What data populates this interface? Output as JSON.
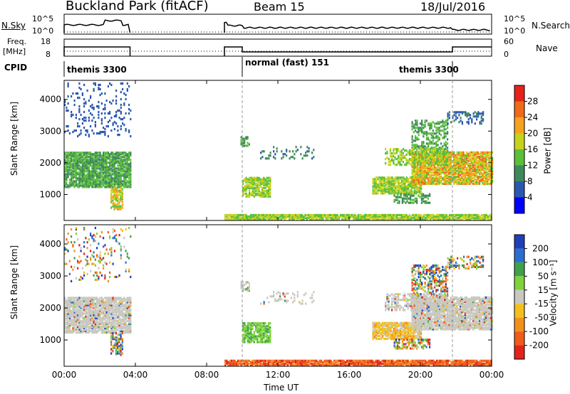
{
  "header": {
    "title": "Buckland Park (fitACF)",
    "beam": "Beam 15",
    "date": "18/Jul/2016"
  },
  "nsky": {
    "label": "N.Sky",
    "left_ticks": [
      "10^5",
      "10^0"
    ],
    "right_ticks": [
      "10^5",
      "10^0"
    ],
    "right_label": "N.Search"
  },
  "freq": {
    "label_line1": "Freq.",
    "label_line2": "[MHz]",
    "left_ticks": [
      "18",
      "8"
    ],
    "right_ticks": [
      "60",
      "0"
    ],
    "right_label": "Nave"
  },
  "cpid": {
    "label": "CPID",
    "segments": [
      {
        "label": "themis 3300"
      },
      {
        "label": "normal (fast) 151"
      },
      {
        "label": "themis 3300"
      }
    ]
  },
  "chart_data": [
    {
      "type": "heatmap",
      "panel": "power",
      "ylabel": "Slant Range [km]",
      "y_ticks": [
        "1000",
        "2000",
        "3000",
        "4000"
      ],
      "ylim": [
        180,
        4600
      ],
      "colorbar_label": "Power [dB]",
      "colorbar_ticks": [
        "4",
        "8",
        "12",
        "16",
        "20",
        "24",
        "28"
      ],
      "colorbar_colors": [
        "#0000ff",
        "#2a58b0",
        "#3f8a5a",
        "#5bbf3a",
        "#c7d21a",
        "#f5a21c",
        "#f06a1a",
        "#e5231a"
      ],
      "echo_regions_description_ut_hours": [
        {
          "start": 0.0,
          "end": 3.7,
          "range_km": [
            1200,
            2300
          ],
          "mean_db": 12
        },
        {
          "start": 9.0,
          "end": 24.0,
          "range_km": [
            180,
            350
          ],
          "mean_db": 14
        },
        {
          "start": 10.0,
          "end": 11.5,
          "range_km": [
            900,
            1500
          ],
          "mean_db": 14
        },
        {
          "start": 17.5,
          "end": 20.0,
          "range_km": [
            1000,
            1500
          ],
          "mean_db": 14
        },
        {
          "start": 19.5,
          "end": 24.0,
          "range_km": [
            1300,
            2300
          ],
          "mean_db": 20
        }
      ]
    },
    {
      "type": "heatmap",
      "panel": "velocity",
      "ylabel": "Slant Range [km]",
      "y_ticks": [
        "1000",
        "2000",
        "3000",
        "4000"
      ],
      "ylim": [
        180,
        4600
      ],
      "colorbar_label": "Velocity [m s⁻¹]",
      "colorbar_ticks": [
        "200",
        "100",
        "50",
        "15",
        "-15",
        "-50",
        "-100",
        "-200"
      ],
      "colorbar_colors": [
        "#1f3fb8",
        "#2a6fd0",
        "#3fa04a",
        "#7ed33a",
        "#c8c8c0",
        "#f2c01c",
        "#f3901c",
        "#f05a1a",
        "#e3231a"
      ]
    }
  ],
  "time_axis": {
    "label": "Time UT",
    "ticks": [
      "00:00",
      "04:00",
      "08:00",
      "12:00",
      "16:00",
      "20:00",
      "00:00"
    ]
  },
  "colors": {
    "ground_scatter": "#c8c8c0",
    "line": "#000000"
  }
}
